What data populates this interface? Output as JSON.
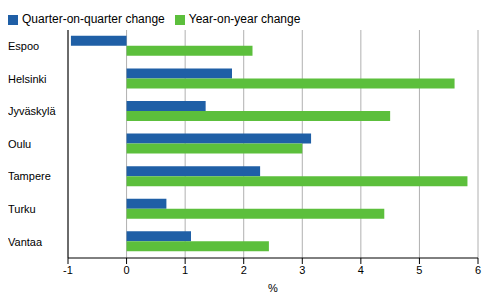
{
  "chart_data": {
    "type": "bar",
    "orientation": "horizontal",
    "categories": [
      "Espoo",
      "Helsinki",
      "Jyväskylä",
      "Oulu",
      "Tampere",
      "Turku",
      "Vantaa"
    ],
    "series": [
      {
        "name": "Quarter-on-quarter change",
        "color": "#1f5fa6",
        "values": [
          -0.95,
          1.8,
          1.35,
          3.15,
          2.28,
          0.68,
          1.1
        ]
      },
      {
        "name": "Year-on-year change",
        "color": "#5cbf3c",
        "values": [
          2.15,
          5.6,
          4.5,
          3.0,
          5.82,
          4.4,
          2.43
        ]
      }
    ],
    "x_label": "%",
    "xlim": [
      -1,
      6
    ],
    "xticks": [
      -1,
      0,
      1,
      2,
      3,
      4,
      5,
      6
    ],
    "grid": true,
    "legend": "top-left"
  }
}
